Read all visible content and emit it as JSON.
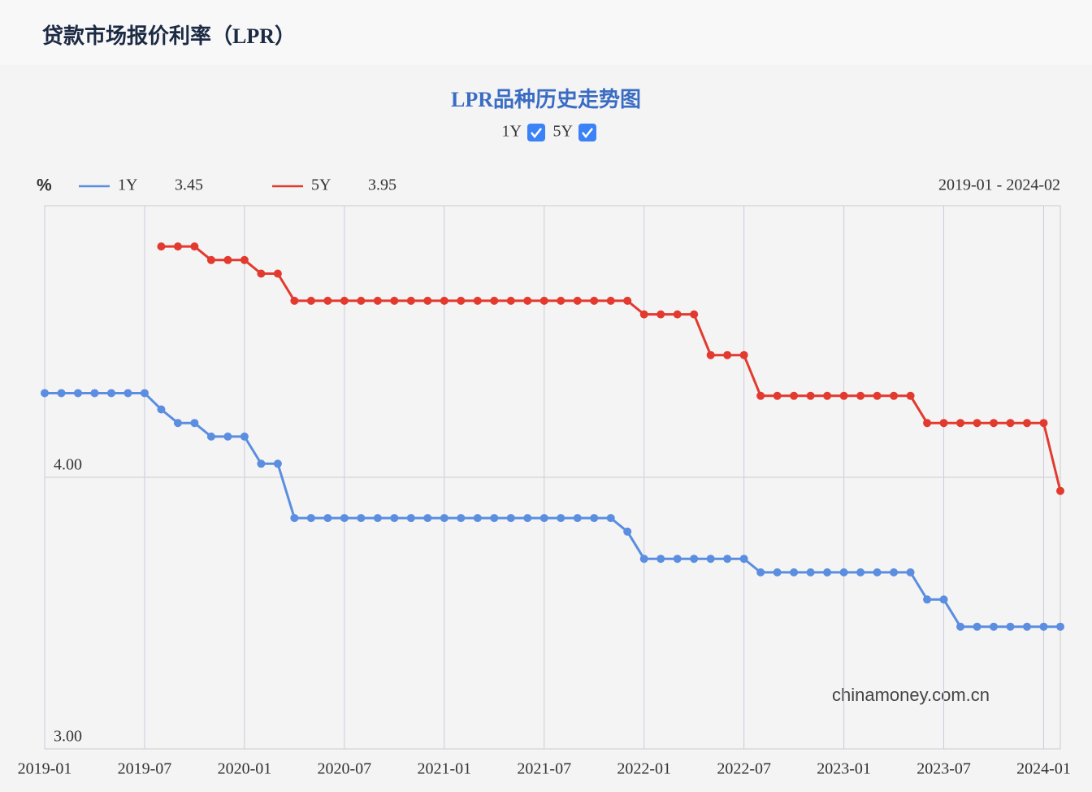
{
  "header": {
    "title": "贷款市场报价利率（LPR）"
  },
  "chart_data": {
    "type": "line",
    "title": "LPR品种历史走势图",
    "y_unit": "%",
    "range_label": "2019-01 - 2024-02",
    "watermark": "chinamoney.com.cn",
    "categories": [
      "2019-01",
      null,
      null,
      null,
      null,
      null,
      "2019-07",
      null,
      null,
      null,
      null,
      null,
      "2020-01",
      null,
      null,
      null,
      null,
      null,
      "2020-07",
      null,
      null,
      null,
      null,
      null,
      "2021-01",
      null,
      null,
      null,
      null,
      null,
      "2021-07",
      null,
      null,
      null,
      null,
      null,
      "2022-01",
      null,
      null,
      null,
      null,
      null,
      "2022-07",
      null,
      null,
      null,
      null,
      null,
      "2023-01",
      null,
      null,
      null,
      null,
      null,
      "2023-07",
      null,
      null,
      null,
      null,
      null,
      "2024-01",
      null
    ],
    "series": [
      {
        "name": "1Y",
        "color": "#5b8ee0",
        "latest_label": "3.45",
        "values": [
          4.31,
          4.31,
          4.31,
          4.31,
          4.31,
          4.31,
          4.31,
          4.25,
          4.2,
          4.2,
          4.15,
          4.15,
          4.15,
          4.05,
          4.05,
          3.85,
          3.85,
          3.85,
          3.85,
          3.85,
          3.85,
          3.85,
          3.85,
          3.85,
          3.85,
          3.85,
          3.85,
          3.85,
          3.85,
          3.85,
          3.85,
          3.85,
          3.85,
          3.85,
          3.85,
          3.8,
          3.7,
          3.7,
          3.7,
          3.7,
          3.7,
          3.7,
          3.7,
          3.65,
          3.65,
          3.65,
          3.65,
          3.65,
          3.65,
          3.65,
          3.65,
          3.65,
          3.65,
          3.55,
          3.55,
          3.45,
          3.45,
          3.45,
          3.45,
          3.45,
          3.45,
          3.45
        ]
      },
      {
        "name": "5Y",
        "color": "#e23a2e",
        "latest_label": "3.95",
        "values": [
          null,
          null,
          null,
          null,
          null,
          null,
          null,
          4.85,
          4.85,
          4.85,
          4.8,
          4.8,
          4.8,
          4.75,
          4.75,
          4.65,
          4.65,
          4.65,
          4.65,
          4.65,
          4.65,
          4.65,
          4.65,
          4.65,
          4.65,
          4.65,
          4.65,
          4.65,
          4.65,
          4.65,
          4.65,
          4.65,
          4.65,
          4.65,
          4.65,
          4.65,
          4.6,
          4.6,
          4.6,
          4.6,
          4.45,
          4.45,
          4.45,
          4.3,
          4.3,
          4.3,
          4.3,
          4.3,
          4.3,
          4.3,
          4.3,
          4.3,
          4.3,
          4.2,
          4.2,
          4.2,
          4.2,
          4.2,
          4.2,
          4.2,
          4.2,
          3.95
        ]
      }
    ],
    "ylim": [
      3,
      5
    ],
    "yticks": [
      {
        "value": 3,
        "label": "3.00"
      },
      {
        "value": 4,
        "label": "4.00"
      }
    ],
    "grid": true
  }
}
